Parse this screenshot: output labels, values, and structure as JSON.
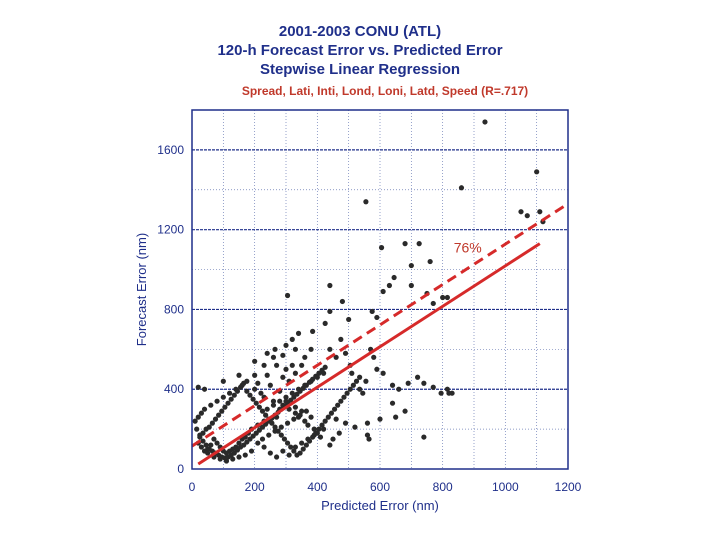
{
  "chart_data": {
    "type": "scatter",
    "title": "2001-2003 CONU (ATL)",
    "subtitle_lines": [
      "120-h Forecast Error vs. Predicted Error",
      "Stepwise Linear Regression"
    ],
    "predictors_note": "Spread, Lati, Inti, Lond, Loni, Latd, Speed  (R=.717)",
    "xlabel": "Predicted Error (nm)",
    "ylabel": "Forecast Error (nm)",
    "xlim": [
      0,
      1200
    ],
    "ylim": [
      0,
      1800
    ],
    "xticks": [
      0,
      200,
      400,
      600,
      800,
      1000,
      1200
    ],
    "yticks": [
      0,
      400,
      800,
      1200,
      1600
    ],
    "xtick_labels": [
      "0",
      "200",
      "400",
      "600",
      "800",
      "1000",
      "1200"
    ],
    "ytick_labels": [
      "0",
      "400",
      "800",
      "1200",
      "1600"
    ],
    "grid": true,
    "annotation": {
      "text": "76%",
      "x": 880,
      "y": 1110
    },
    "lines": [
      {
        "name": "regression",
        "style": "solid",
        "color": "#d62a2a",
        "x": [
          20,
          1110
        ],
        "y": [
          25,
          1130
        ]
      },
      {
        "name": "76% line",
        "style": "dashed",
        "color": "#d62a2a",
        "x": [
          0,
          1200
        ],
        "y": [
          115,
          1330
        ]
      }
    ],
    "point_color": "#2a2a2a",
    "points": [
      [
        935,
        1740
      ],
      [
        1100,
        1490
      ],
      [
        860,
        1410
      ],
      [
        555,
        1340
      ],
      [
        1050,
        1290
      ],
      [
        1070,
        1270
      ],
      [
        1110,
        1290
      ],
      [
        1120,
        1240
      ],
      [
        680,
        1130
      ],
      [
        605,
        1110
      ],
      [
        725,
        1130
      ],
      [
        760,
        1040
      ],
      [
        700,
        1020
      ],
      [
        645,
        960
      ],
      [
        630,
        920
      ],
      [
        610,
        890
      ],
      [
        700,
        920
      ],
      [
        750,
        880
      ],
      [
        770,
        830
      ],
      [
        800,
        860
      ],
      [
        815,
        860
      ],
      [
        575,
        790
      ],
      [
        590,
        760
      ],
      [
        440,
        920
      ],
      [
        305,
        870
      ],
      [
        480,
        840
      ],
      [
        440,
        790
      ],
      [
        500,
        750
      ],
      [
        425,
        730
      ],
      [
        385,
        690
      ],
      [
        475,
        650
      ],
      [
        440,
        600
      ],
      [
        490,
        580
      ],
      [
        460,
        560
      ],
      [
        570,
        600
      ],
      [
        580,
        560
      ],
      [
        505,
        520
      ],
      [
        510,
        480
      ],
      [
        535,
        460
      ],
      [
        555,
        440
      ],
      [
        590,
        500
      ],
      [
        610,
        480
      ],
      [
        640,
        420
      ],
      [
        660,
        400
      ],
      [
        690,
        430
      ],
      [
        720,
        460
      ],
      [
        740,
        430
      ],
      [
        770,
        410
      ],
      [
        795,
        380
      ],
      [
        820,
        380
      ],
      [
        830,
        380
      ],
      [
        640,
        330
      ],
      [
        680,
        290
      ],
      [
        650,
        260
      ],
      [
        600,
        250
      ],
      [
        560,
        230
      ],
      [
        520,
        210
      ],
      [
        490,
        230
      ],
      [
        470,
        180
      ],
      [
        450,
        150
      ],
      [
        440,
        120
      ],
      [
        410,
        160
      ],
      [
        420,
        200
      ],
      [
        460,
        250
      ],
      [
        380,
        260
      ],
      [
        350,
        290
      ],
      [
        330,
        310
      ],
      [
        300,
        340
      ],
      [
        280,
        300
      ],
      [
        270,
        260
      ],
      [
        250,
        250
      ],
      [
        230,
        240
      ],
      [
        210,
        220
      ],
      [
        190,
        200
      ],
      [
        180,
        180
      ],
      [
        170,
        160
      ],
      [
        160,
        150
      ],
      [
        150,
        130
      ],
      [
        140,
        110
      ],
      [
        130,
        100
      ],
      [
        120,
        90
      ],
      [
        110,
        80
      ],
      [
        100,
        90
      ],
      [
        90,
        110
      ],
      [
        80,
        130
      ],
      [
        70,
        150
      ],
      [
        60,
        120
      ],
      [
        50,
        100
      ],
      [
        40,
        90
      ],
      [
        30,
        110
      ],
      [
        20,
        130
      ],
      [
        25,
        160
      ],
      [
        35,
        180
      ],
      [
        45,
        200
      ],
      [
        55,
        210
      ],
      [
        65,
        230
      ],
      [
        75,
        250
      ],
      [
        85,
        270
      ],
      [
        95,
        290
      ],
      [
        105,
        310
      ],
      [
        115,
        330
      ],
      [
        125,
        350
      ],
      [
        135,
        370
      ],
      [
        145,
        390
      ],
      [
        155,
        410
      ],
      [
        165,
        430
      ],
      [
        175,
        390
      ],
      [
        185,
        370
      ],
      [
        195,
        350
      ],
      [
        205,
        330
      ],
      [
        215,
        310
      ],
      [
        225,
        290
      ],
      [
        235,
        270
      ],
      [
        245,
        250
      ],
      [
        255,
        230
      ],
      [
        265,
        210
      ],
      [
        275,
        190
      ],
      [
        285,
        170
      ],
      [
        295,
        150
      ],
      [
        305,
        130
      ],
      [
        315,
        110
      ],
      [
        325,
        90
      ],
      [
        335,
        70
      ],
      [
        345,
        80
      ],
      [
        355,
        100
      ],
      [
        365,
        120
      ],
      [
        375,
        140
      ],
      [
        385,
        160
      ],
      [
        395,
        180
      ],
      [
        405,
        200
      ],
      [
        415,
        220
      ],
      [
        425,
        240
      ],
      [
        435,
        260
      ],
      [
        445,
        280
      ],
      [
        455,
        300
      ],
      [
        465,
        320
      ],
      [
        475,
        340
      ],
      [
        485,
        360
      ],
      [
        495,
        380
      ],
      [
        505,
        400
      ],
      [
        515,
        420
      ],
      [
        525,
        440
      ],
      [
        535,
        400
      ],
      [
        545,
        380
      ],
      [
        280,
        390
      ],
      [
        250,
        420
      ],
      [
        240,
        470
      ],
      [
        210,
        430
      ],
      [
        200,
        400
      ],
      [
        220,
        380
      ],
      [
        230,
        360
      ],
      [
        260,
        340
      ],
      [
        290,
        320
      ],
      [
        310,
        300
      ],
      [
        330,
        280
      ],
      [
        340,
        260
      ],
      [
        360,
        240
      ],
      [
        370,
        220
      ],
      [
        390,
        200
      ],
      [
        400,
        180
      ],
      [
        300,
        500
      ],
      [
        320,
        520
      ],
      [
        290,
        460
      ],
      [
        310,
        440
      ],
      [
        330,
        480
      ],
      [
        270,
        520
      ],
      [
        350,
        520
      ],
      [
        360,
        560
      ],
      [
        380,
        600
      ],
      [
        330,
        600
      ],
      [
        290,
        570
      ],
      [
        260,
        560
      ],
      [
        230,
        520
      ],
      [
        200,
        470
      ],
      [
        175,
        440
      ],
      [
        160,
        420
      ],
      [
        140,
        400
      ],
      [
        120,
        380
      ],
      [
        100,
        360
      ],
      [
        80,
        340
      ],
      [
        60,
        320
      ],
      [
        40,
        300
      ],
      [
        30,
        280
      ],
      [
        20,
        260
      ],
      [
        10,
        240
      ],
      [
        15,
        200
      ],
      [
        25,
        170
      ],
      [
        35,
        140
      ],
      [
        45,
        120
      ],
      [
        55,
        100
      ],
      [
        65,
        90
      ],
      [
        75,
        80
      ],
      [
        85,
        70
      ],
      [
        95,
        60
      ],
      [
        105,
        55
      ],
      [
        115,
        60
      ],
      [
        125,
        70
      ],
      [
        135,
        80
      ],
      [
        145,
        95
      ],
      [
        155,
        110
      ],
      [
        165,
        120
      ],
      [
        175,
        135
      ],
      [
        185,
        150
      ],
      [
        195,
        165
      ],
      [
        205,
        180
      ],
      [
        215,
        195
      ],
      [
        225,
        210
      ],
      [
        235,
        225
      ],
      [
        245,
        240
      ],
      [
        255,
        255
      ],
      [
        265,
        270
      ],
      [
        275,
        285
      ],
      [
        285,
        300
      ],
      [
        295,
        315
      ],
      [
        305,
        330
      ],
      [
        315,
        345
      ],
      [
        325,
        360
      ],
      [
        335,
        375
      ],
      [
        345,
        390
      ],
      [
        355,
        405
      ],
      [
        365,
        420
      ],
      [
        375,
        435
      ],
      [
        385,
        450
      ],
      [
        395,
        465
      ],
      [
        405,
        480
      ],
      [
        415,
        495
      ],
      [
        425,
        510
      ],
      [
        250,
        80
      ],
      [
        270,
        60
      ],
      [
        290,
        90
      ],
      [
        310,
        70
      ],
      [
        330,
        110
      ],
      [
        350,
        130
      ],
      [
        370,
        150
      ],
      [
        390,
        170
      ],
      [
        230,
        110
      ],
      [
        210,
        130
      ],
      [
        190,
        90
      ],
      [
        170,
        70
      ],
      [
        150,
        60
      ],
      [
        130,
        50
      ],
      [
        110,
        40
      ],
      [
        90,
        50
      ],
      [
        70,
        60
      ],
      [
        50,
        80
      ],
      [
        20,
        410
      ],
      [
        40,
        400
      ],
      [
        100,
        440
      ],
      [
        150,
        470
      ],
      [
        200,
        540
      ],
      [
        240,
        580
      ],
      [
        265,
        600
      ],
      [
        300,
        620
      ],
      [
        320,
        650
      ],
      [
        340,
        680
      ],
      [
        225,
        150
      ],
      [
        245,
        170
      ],
      [
        265,
        190
      ],
      [
        285,
        210
      ],
      [
        305,
        230
      ],
      [
        325,
        250
      ],
      [
        345,
        270
      ],
      [
        365,
        290
      ],
      [
        240,
        300
      ],
      [
        260,
        320
      ],
      [
        280,
        340
      ],
      [
        300,
        360
      ],
      [
        320,
        380
      ],
      [
        340,
        400
      ],
      [
        360,
        420
      ],
      [
        380,
        440
      ],
      [
        400,
        460
      ],
      [
        420,
        480
      ],
      [
        565,
        150
      ],
      [
        740,
        160
      ],
      [
        815,
        400
      ],
      [
        560,
        170
      ]
    ]
  }
}
